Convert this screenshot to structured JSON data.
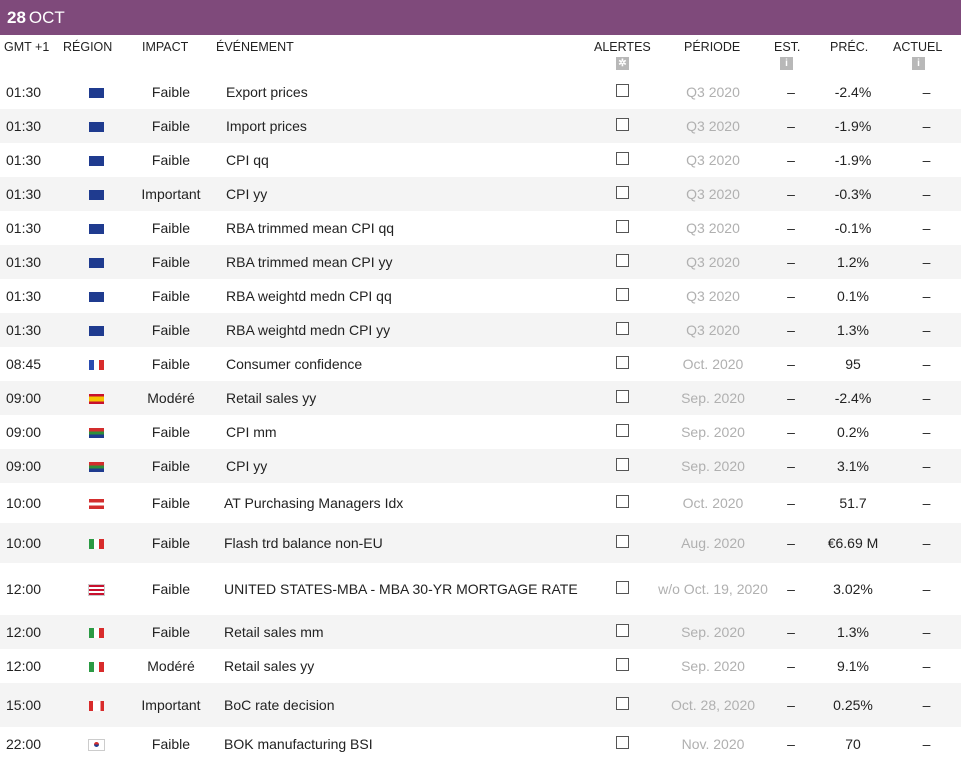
{
  "header": {
    "day": "28",
    "month": "OCT"
  },
  "columns": {
    "time": "GMT +1",
    "region": "RÉGION",
    "impact": "IMPACT",
    "event": "ÉVÉNEMENT",
    "alerts": "ALERTES",
    "period": "PÉRIODE",
    "est": "EST.",
    "prev": "PRÉC.",
    "actual": "ACTUEL"
  },
  "icons": {
    "alerts": "gear-icon",
    "est": "info-icon",
    "actual": "info-icon"
  },
  "rows": [
    {
      "time": "01:30",
      "flag": "au",
      "impact": "Faible",
      "event": "Export prices",
      "period": "Q3 2020",
      "est": "–",
      "prev": "-2.4%",
      "actual": "–"
    },
    {
      "time": "01:30",
      "flag": "au",
      "impact": "Faible",
      "event": "Import prices",
      "period": "Q3 2020",
      "est": "–",
      "prev": "-1.9%",
      "actual": "–"
    },
    {
      "time": "01:30",
      "flag": "au",
      "impact": "Faible",
      "event": "CPI qq",
      "period": "Q3 2020",
      "est": "–",
      "prev": "-1.9%",
      "actual": "–"
    },
    {
      "time": "01:30",
      "flag": "au",
      "impact": "Important",
      "event": "CPI yy",
      "period": "Q3 2020",
      "est": "–",
      "prev": "-0.3%",
      "actual": "–"
    },
    {
      "time": "01:30",
      "flag": "au",
      "impact": "Faible",
      "event": "RBA trimmed mean CPI qq",
      "period": "Q3 2020",
      "est": "–",
      "prev": "-0.1%",
      "actual": "–"
    },
    {
      "time": "01:30",
      "flag": "au",
      "impact": "Faible",
      "event": "RBA trimmed mean CPI yy",
      "period": "Q3 2020",
      "est": "–",
      "prev": "1.2%",
      "actual": "–"
    },
    {
      "time": "01:30",
      "flag": "au",
      "impact": "Faible",
      "event": "RBA weightd medn CPI qq",
      "period": "Q3 2020",
      "est": "–",
      "prev": "0.1%",
      "actual": "–"
    },
    {
      "time": "01:30",
      "flag": "au",
      "impact": "Faible",
      "event": "RBA weightd medn CPI yy",
      "period": "Q3 2020",
      "est": "–",
      "prev": "1.3%",
      "actual": "–"
    },
    {
      "time": "08:45",
      "flag": "fr",
      "impact": "Faible",
      "event": "Consumer confidence",
      "period": "Oct. 2020",
      "est": "–",
      "prev": "95",
      "actual": "–"
    },
    {
      "time": "09:00",
      "flag": "es",
      "impact": "Modéré",
      "event": "Retail sales yy",
      "period": "Sep. 2020",
      "est": "–",
      "prev": "-2.4%",
      "actual": "–"
    },
    {
      "time": "09:00",
      "flag": "za",
      "impact": "Faible",
      "event": "CPI mm",
      "period": "Sep. 2020",
      "est": "–",
      "prev": "0.2%",
      "actual": "–"
    },
    {
      "time": "09:00",
      "flag": "za",
      "impact": "Faible",
      "event": "CPI yy",
      "period": "Sep. 2020",
      "est": "–",
      "prev": "3.1%",
      "actual": "–"
    },
    {
      "time": "10:00",
      "flag": "at",
      "impact": "Faible",
      "event": "AT Purchasing Managers Idx",
      "period": "Oct. 2020",
      "est": "–",
      "prev": "51.7",
      "actual": "–"
    },
    {
      "time": "10:00",
      "flag": "it",
      "impact": "Faible",
      "event": "Flash trd balance non-EU",
      "period": "Aug. 2020",
      "est": "–",
      "prev": "€6.69 M",
      "actual": "–"
    },
    {
      "time": "12:00",
      "flag": "us",
      "impact": "Faible",
      "event": "UNITED STATES-MBA - MBA 30-YR MORTGAGE RATE",
      "period": "w/o Oct. 19, 2020",
      "est": "–",
      "prev": "3.02%",
      "actual": "–"
    },
    {
      "time": "12:00",
      "flag": "it",
      "impact": "Faible",
      "event": "Retail sales mm",
      "period": "Sep. 2020",
      "est": "–",
      "prev": "1.3%",
      "actual": "–"
    },
    {
      "time": "12:00",
      "flag": "it",
      "impact": "Modéré",
      "event": "Retail sales yy",
      "period": "Sep. 2020",
      "est": "–",
      "prev": "9.1%",
      "actual": "–"
    },
    {
      "time": "15:00",
      "flag": "ca",
      "impact": "Important",
      "event": "BoC rate decision",
      "period": "Oct. 28, 2020",
      "est": "–",
      "prev": "0.25%",
      "actual": "–"
    },
    {
      "time": "22:00",
      "flag": "kr",
      "impact": "Faible",
      "event": "BOK manufacturing BSI",
      "period": "Nov. 2020",
      "est": "–",
      "prev": "70",
      "actual": "–"
    }
  ]
}
